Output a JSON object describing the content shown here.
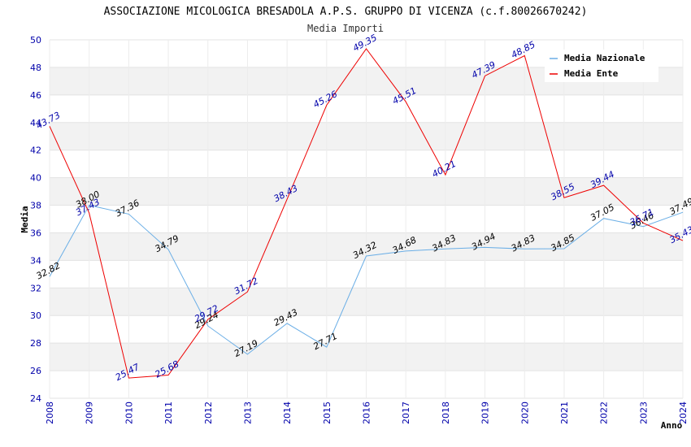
{
  "chart_data": {
    "type": "line",
    "title": "ASSOCIAZIONE MICOLOGICA BRESADOLA A.P.S. GRUPPO DI VICENZA (c.f.80026670242)",
    "subtitle": "Media Importi",
    "xlabel": "Anno",
    "ylabel": "Media",
    "x": [
      "2008",
      "2009",
      "2010",
      "2011",
      "2012",
      "2013",
      "2014",
      "2015",
      "2016",
      "2017",
      "2018",
      "2019",
      "2020",
      "2021",
      "2022",
      "2023",
      "2024"
    ],
    "ylim": [
      24,
      50
    ],
    "yticks": [
      "24",
      "26",
      "28",
      "30",
      "32",
      "34",
      "36",
      "38",
      "40",
      "42",
      "44",
      "46",
      "48",
      "50"
    ],
    "grid": true,
    "legend_position": "top-right",
    "series": [
      {
        "name": "Media Nazionale",
        "color": "#6aaee6",
        "label_color": "#000000",
        "values": [
          32.82,
          38.0,
          37.36,
          34.79,
          29.24,
          27.19,
          29.43,
          27.71,
          34.32,
          34.68,
          34.83,
          34.94,
          34.83,
          34.85,
          37.05,
          36.46,
          37.49
        ],
        "labels": [
          "32.82",
          "38.00",
          "37.36",
          "34.79",
          "29.24",
          "27.19",
          "29.43",
          "27.71",
          "34.32",
          "34.68",
          "34.83",
          "34.94",
          "34.83",
          "34.85",
          "37.05",
          "36.46",
          "37.49"
        ]
      },
      {
        "name": "Media Ente",
        "color": "#ee0000",
        "label_color": "#0000aa",
        "values": [
          43.73,
          37.43,
          25.47,
          25.68,
          29.72,
          31.72,
          38.43,
          45.26,
          49.35,
          45.51,
          40.21,
          47.39,
          48.85,
          38.55,
          39.44,
          36.71,
          35.43
        ],
        "labels": [
          "43.73",
          "37.43",
          "25.47",
          "25.68",
          "29.72",
          "31.72",
          "38.43",
          "45.26",
          "49.35",
          "45.51",
          "40.21",
          "47.39",
          "48.85",
          "38.55",
          "39.44",
          "36.71",
          "35.43"
        ]
      }
    ]
  }
}
